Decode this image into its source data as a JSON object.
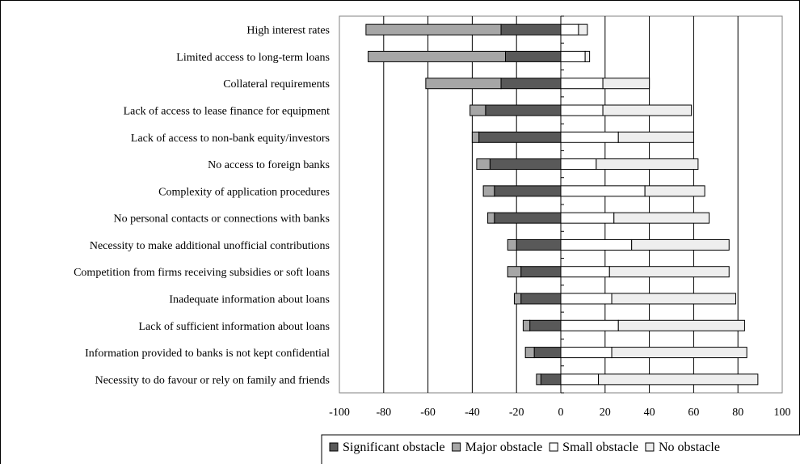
{
  "chart_data": {
    "type": "bar",
    "orientation": "horizontal",
    "stacked": "diverging",
    "categories": [
      "High interest rates",
      "Limited access to long-term loans",
      "Collateral requirements",
      "Lack of access to lease finance for equipment",
      "Lack of access to non-bank equity/investors",
      "No access to foreign banks",
      "Complexity of application procedures",
      "No personal contacts or connections with banks",
      "Necessity to make additional unofficial contributions",
      "Competition from firms receiving subsidies or soft loans",
      "Inadequate information about loans",
      "Lack of sufficient information about loans",
      "Information provided to banks is not kept confidential",
      "Necessity to do favour or rely on family and friends"
    ],
    "series": [
      {
        "name": "Significant obstacle",
        "color": "#595959",
        "values": [
          -27,
          -25,
          -27,
          -34,
          -37,
          -32,
          -30,
          -30,
          -20,
          -18,
          -18,
          -14,
          -12,
          -9
        ]
      },
      {
        "name": "Major obstacle",
        "color": "#a6a6a6",
        "values": [
          -61,
          -62,
          -34,
          -7,
          -3,
          -6,
          -5,
          -3,
          -4,
          -6,
          -3,
          -3,
          -4,
          -2
        ]
      },
      {
        "name": "Small obstacle",
        "color": "#ffffff",
        "values": [
          8,
          11,
          19,
          19,
          26,
          16,
          38,
          24,
          32,
          22,
          23,
          26,
          23,
          17
        ]
      },
      {
        "name": "No obstacle",
        "color": "#eeeeee",
        "values": [
          4,
          2,
          21,
          40,
          34,
          46,
          27,
          43,
          44,
          54,
          56,
          57,
          61,
          72
        ]
      }
    ],
    "xlim": [
      -100,
      100
    ],
    "xticks": [
      "-100",
      "-80",
      "-60",
      "-40",
      "-20",
      "0",
      "20",
      "40",
      "60",
      "80",
      "100"
    ],
    "grid": "vertical",
    "legend": "bottom",
    "title": "",
    "xlabel": "",
    "ylabel": ""
  }
}
